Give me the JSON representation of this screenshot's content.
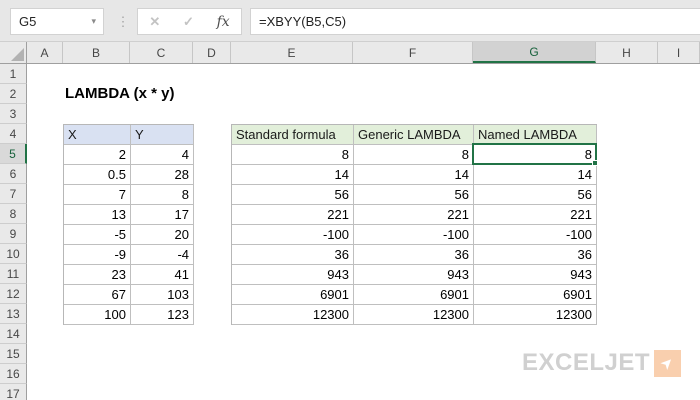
{
  "toolbar": {
    "name_box": "G5",
    "dropdown_icon": "▾",
    "dots_icon": "⋮",
    "cancel_icon": "✕",
    "enter_icon": "✓",
    "fx_icon": "fx",
    "formula": "=XBYY(B5,C5)"
  },
  "grid": {
    "column_headers": [
      "A",
      "B",
      "C",
      "D",
      "E",
      "F",
      "G",
      "H",
      "I"
    ],
    "row_numbers": [
      1,
      2,
      3,
      4,
      5,
      6,
      7,
      8,
      9,
      10,
      11,
      12,
      13,
      14,
      15,
      16,
      17
    ],
    "selected_column": "G",
    "selected_row": 5,
    "selected_cell": "G5"
  },
  "sheet": {
    "title": "LAMBDA (x * y)",
    "xy_table": {
      "headers": [
        "X",
        "Y"
      ],
      "rows": [
        [
          "2",
          "4"
        ],
        [
          "0.5",
          "28"
        ],
        [
          "7",
          "8"
        ],
        [
          "13",
          "17"
        ],
        [
          "-5",
          "20"
        ],
        [
          "-9",
          "-4"
        ],
        [
          "23",
          "41"
        ],
        [
          "67",
          "103"
        ],
        [
          "100",
          "123"
        ]
      ]
    },
    "results_table": {
      "headers": [
        "Standard formula",
        "Generic LAMBDA",
        "Named LAMBDA"
      ],
      "rows": [
        [
          "8",
          "8",
          "8"
        ],
        [
          "14",
          "14",
          "14"
        ],
        [
          "56",
          "56",
          "56"
        ],
        [
          "221",
          "221",
          "221"
        ],
        [
          "-100",
          "-100",
          "-100"
        ],
        [
          "36",
          "36",
          "36"
        ],
        [
          "943",
          "943",
          "943"
        ],
        [
          "6901",
          "6901",
          "6901"
        ],
        [
          "12300",
          "12300",
          "12300"
        ]
      ]
    }
  },
  "logo": {
    "text": "EXCELJET",
    "arrow_icon": "➤"
  },
  "colors": {
    "excel_green": "#217346",
    "xy_header_fill": "#d9e1f2",
    "results_header_fill": "#e2efda",
    "logo_gray": "#d0d0d0",
    "logo_orange": "#f9cfae"
  }
}
